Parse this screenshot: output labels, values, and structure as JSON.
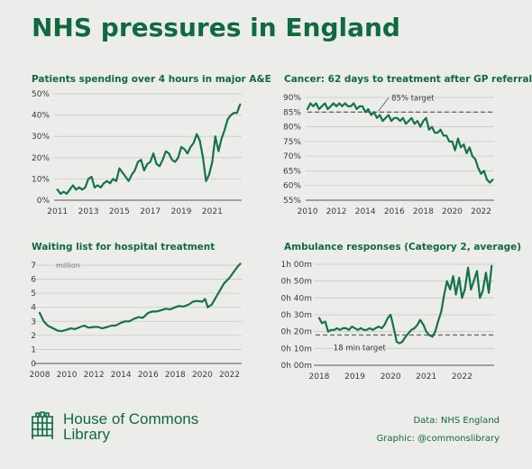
{
  "title": "NHS pressures in England",
  "footer": {
    "brand_line1": "House of Commons",
    "brand_line2": "Library",
    "source": "Data: NHS England",
    "graphic": "Graphic: @commonslibrary",
    "logo_icon": "portcullis-icon"
  },
  "colors": {
    "line": "#13744a",
    "title": "#0f6b3f",
    "grid": "#c9c9c6",
    "background": "#ececea"
  },
  "chart_data": [
    {
      "type": "line",
      "title": "Patients spending over 4 hours in major A&E",
      "y_unit": "%",
      "ylim": [
        0,
        50
      ],
      "yticks": [
        0,
        10,
        20,
        30,
        40,
        50
      ],
      "ytick_labels": [
        "0%",
        "10%",
        "20%",
        "30%",
        "40%",
        "50%"
      ],
      "xlim": [
        2010.9,
        2022.9
      ],
      "xticks": [
        2011,
        2013,
        2015,
        2017,
        2019,
        2021
      ],
      "xtick_labels": [
        "2011",
        "2013",
        "2015",
        "2017",
        "2019",
        "2021"
      ],
      "grid": true,
      "series": [
        {
          "x": [
            2011.0,
            2011.2,
            2011.4,
            2011.6,
            2011.8,
            2012.0,
            2012.2,
            2012.4,
            2012.6,
            2012.8,
            2013.0,
            2013.2,
            2013.4,
            2013.6,
            2013.8,
            2014.0,
            2014.2,
            2014.4,
            2014.6,
            2014.8,
            2015.0,
            2015.2,
            2015.4,
            2015.6,
            2015.8,
            2016.0,
            2016.2,
            2016.4,
            2016.6,
            2016.8,
            2017.0,
            2017.2,
            2017.4,
            2017.6,
            2017.8,
            2018.0,
            2018.2,
            2018.4,
            2018.6,
            2018.8,
            2019.0,
            2019.2,
            2019.4,
            2019.6,
            2019.8,
            2020.0,
            2020.2,
            2020.4,
            2020.6,
            2020.8,
            2021.0,
            2021.2,
            2021.4,
            2021.6,
            2021.8,
            2022.0,
            2022.2,
            2022.4,
            2022.6,
            2022.8
          ],
          "y": [
            5,
            3,
            4,
            3,
            5,
            7,
            5,
            6,
            5,
            6,
            10,
            11,
            6,
            7,
            6,
            8,
            9,
            8,
            10,
            9,
            15,
            13,
            11,
            9,
            12,
            14,
            18,
            19,
            14,
            17,
            18,
            22,
            17,
            16,
            19,
            23,
            22,
            19,
            18,
            20,
            25,
            24,
            22,
            25,
            27,
            31,
            28,
            20,
            9,
            12,
            18,
            30,
            23,
            29,
            33,
            38,
            40,
            41,
            41,
            45
          ]
        }
      ]
    },
    {
      "type": "line",
      "title": "Cancer: 62 days to treatment after GP referral",
      "y_unit": "%",
      "ylim": [
        55,
        90
      ],
      "yticks": [
        55,
        60,
        65,
        70,
        75,
        80,
        85,
        90
      ],
      "ytick_labels": [
        "55%",
        "60%",
        "65%",
        "70%",
        "75%",
        "80%",
        "85%",
        "90%"
      ],
      "xlim": [
        2010,
        2022.9
      ],
      "xticks": [
        2010,
        2012,
        2014,
        2016,
        2018,
        2020,
        2022
      ],
      "xtick_labels": [
        "2010",
        "2012",
        "2014",
        "2016",
        "2018",
        "2020",
        "2022"
      ],
      "grid": true,
      "target": {
        "value": 85,
        "label": "85% target"
      },
      "series": [
        {
          "x": [
            2010.0,
            2010.2,
            2010.4,
            2010.6,
            2010.8,
            2011.0,
            2011.2,
            2011.4,
            2011.6,
            2011.8,
            2012.0,
            2012.2,
            2012.4,
            2012.6,
            2012.8,
            2013.0,
            2013.2,
            2013.4,
            2013.6,
            2013.8,
            2014.0,
            2014.2,
            2014.4,
            2014.6,
            2014.8,
            2015.0,
            2015.2,
            2015.4,
            2015.6,
            2015.8,
            2016.0,
            2016.2,
            2016.4,
            2016.6,
            2016.8,
            2017.0,
            2017.2,
            2017.4,
            2017.6,
            2017.8,
            2018.0,
            2018.2,
            2018.4,
            2018.6,
            2018.8,
            2019.0,
            2019.2,
            2019.4,
            2019.6,
            2019.8,
            2020.0,
            2020.2,
            2020.4,
            2020.6,
            2020.8,
            2021.0,
            2021.2,
            2021.4,
            2021.6,
            2021.8,
            2022.0,
            2022.2,
            2022.4,
            2022.6,
            2022.8
          ],
          "y": [
            86,
            88,
            87,
            88,
            86,
            87,
            88,
            86,
            87,
            88,
            87,
            88,
            87,
            88,
            87,
            87,
            88,
            86,
            87,
            87,
            85,
            86,
            84,
            85,
            83,
            84,
            82,
            83,
            84,
            82,
            83,
            83,
            82,
            83,
            81,
            82,
            83,
            81,
            82,
            80,
            82,
            83,
            79,
            80,
            78,
            78,
            79,
            77,
            77,
            75,
            75,
            72,
            76,
            73,
            74,
            71,
            73,
            70,
            69,
            66,
            64,
            65,
            62,
            61,
            62
          ]
        }
      ]
    },
    {
      "type": "line",
      "title": "Waiting list for hospital treatment",
      "y_unit": "million",
      "ylim": [
        0,
        7
      ],
      "yticks": [
        0,
        1,
        2,
        3,
        4,
        5,
        6,
        7
      ],
      "ytick_labels": [
        "0",
        "1",
        "2",
        "3",
        "4",
        "5",
        "6",
        "7"
      ],
      "xlim": [
        2008,
        2022.9
      ],
      "xticks": [
        2008,
        2010,
        2012,
        2014,
        2016,
        2018,
        2020,
        2022
      ],
      "xtick_labels": [
        "2008",
        "2010",
        "2012",
        "2014",
        "2016",
        "2018",
        "2020",
        "2022"
      ],
      "grid": true,
      "series": [
        {
          "x": [
            2008.0,
            2008.3,
            2008.6,
            2009.0,
            2009.3,
            2009.6,
            2010.0,
            2010.3,
            2010.6,
            2011.0,
            2011.3,
            2011.6,
            2012.0,
            2012.3,
            2012.6,
            2013.0,
            2013.3,
            2013.6,
            2014.0,
            2014.3,
            2014.6,
            2015.0,
            2015.3,
            2015.6,
            2016.0,
            2016.3,
            2016.6,
            2017.0,
            2017.3,
            2017.6,
            2018.0,
            2018.3,
            2018.6,
            2019.0,
            2019.3,
            2019.6,
            2020.0,
            2020.2,
            2020.4,
            2020.7,
            2021.0,
            2021.3,
            2021.6,
            2022.0,
            2022.3,
            2022.6,
            2022.8
          ],
          "y": [
            3.6,
            3.0,
            2.7,
            2.5,
            2.35,
            2.3,
            2.4,
            2.5,
            2.45,
            2.6,
            2.7,
            2.55,
            2.6,
            2.6,
            2.5,
            2.6,
            2.7,
            2.7,
            2.9,
            3.0,
            3.0,
            3.2,
            3.3,
            3.25,
            3.6,
            3.7,
            3.7,
            3.8,
            3.9,
            3.85,
            4.0,
            4.1,
            4.05,
            4.2,
            4.4,
            4.45,
            4.4,
            4.6,
            4.0,
            4.2,
            4.7,
            5.2,
            5.7,
            6.1,
            6.5,
            6.9,
            7.1
          ]
        }
      ]
    },
    {
      "type": "line",
      "title": "Ambulance responses (Category 2, average)",
      "y_unit": "minutes",
      "ylim": [
        0,
        60
      ],
      "yticks": [
        0,
        10,
        20,
        30,
        40,
        50,
        60
      ],
      "ytick_labels": [
        "0h 00m",
        "0h 10m",
        "0h 20m",
        "0h 30m",
        "0h 40m",
        "0h 50m",
        "1h 00m"
      ],
      "xlim": [
        2017.9,
        2022.9
      ],
      "xticks": [
        2018,
        2019,
        2020,
        2021,
        2022
      ],
      "xtick_labels": [
        "2018",
        "2019",
        "2020",
        "2021",
        "2022"
      ],
      "grid": true,
      "target": {
        "value": 18,
        "label": "18 min target"
      },
      "series": [
        {
          "x": [
            2018.0,
            2018.08,
            2018.17,
            2018.25,
            2018.33,
            2018.42,
            2018.5,
            2018.58,
            2018.67,
            2018.75,
            2018.83,
            2018.92,
            2019.0,
            2019.08,
            2019.17,
            2019.25,
            2019.33,
            2019.42,
            2019.5,
            2019.58,
            2019.67,
            2019.75,
            2019.83,
            2019.92,
            2020.0,
            2020.08,
            2020.17,
            2020.25,
            2020.33,
            2020.42,
            2020.5,
            2020.58,
            2020.67,
            2020.75,
            2020.83,
            2020.92,
            2021.0,
            2021.08,
            2021.17,
            2021.25,
            2021.33,
            2021.42,
            2021.5,
            2021.58,
            2021.67,
            2021.75,
            2021.83,
            2021.92,
            2022.0,
            2022.08,
            2022.17,
            2022.25,
            2022.33,
            2022.42,
            2022.5,
            2022.58,
            2022.67,
            2022.75,
            2022.83
          ],
          "y": [
            28,
            25,
            26,
            20,
            21,
            21,
            22,
            21,
            22,
            22,
            21,
            23,
            22,
            21,
            22,
            21,
            21,
            22,
            21,
            22,
            23,
            22,
            24,
            28,
            30,
            23,
            14,
            13,
            14,
            17,
            19,
            21,
            22,
            24,
            27,
            24,
            20,
            18,
            17,
            20,
            26,
            32,
            42,
            50,
            45,
            53,
            42,
            52,
            40,
            45,
            58,
            45,
            50,
            56,
            40,
            44,
            55,
            43,
            59
          ]
        }
      ]
    }
  ]
}
